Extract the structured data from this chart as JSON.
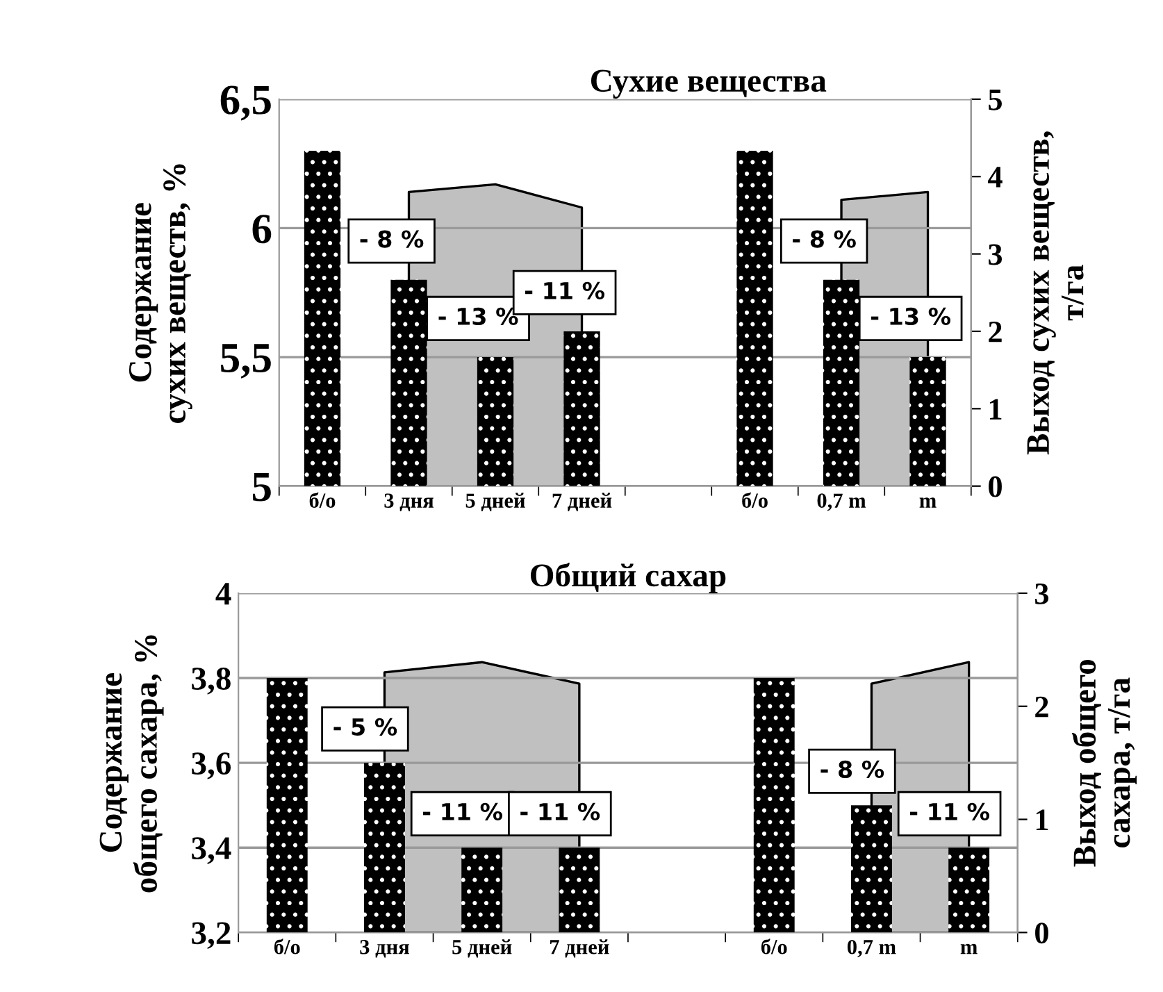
{
  "chart_data": [
    {
      "type": "bar",
      "title": "Сухие вещества",
      "ylabel": "Содержание\nсухих веществ, %",
      "y2label": "Выход сухих веществ,\nт/га",
      "categories": [
        "б/о",
        "3 дня",
        "5 дней",
        "7 дней",
        null,
        "б/о",
        "0,7 m",
        "m"
      ],
      "series": [
        {
          "type": "area",
          "axis": "y2",
          "color": "#c0c0c0",
          "values": [
            null,
            3.8,
            3.9,
            3.6,
            null,
            null,
            3.7,
            3.8
          ]
        },
        {
          "color": "#000000",
          "values": [
            6.3,
            5.8,
            5.5,
            5.6,
            null,
            6.3,
            5.8,
            5.5
          ]
        }
      ],
      "ylim": [
        5,
        6.5
      ],
      "yticks": [
        {
          "value": 5,
          "label": "5"
        },
        {
          "value": 5.5,
          "label": "5,5"
        },
        {
          "value": 6,
          "label": "6"
        },
        {
          "value": 6.5,
          "label": "6,5"
        }
      ],
      "y2lim": [
        0,
        5
      ],
      "y2ticks": [
        0,
        1,
        2,
        3,
        4,
        5
      ],
      "grid": "y",
      "annotations": [
        "- 8 %",
        "- 13 %",
        "- 11 %",
        "- 8 %",
        "- 13 %"
      ]
    },
    {
      "type": "bar",
      "title": "Общий сахар",
      "ylabel": "Содержание\nобщего сахара, %",
      "y2label": "Выход общего\nсахара, т/га",
      "categories": [
        "б/о",
        "3 дня",
        "5 дней",
        "7 дней",
        null,
        "б/о",
        "0,7 m",
        "m"
      ],
      "series": [
        {
          "type": "area",
          "axis": "y2",
          "color": "#c0c0c0",
          "values": [
            null,
            2.3,
            2.39,
            2.2,
            null,
            null,
            2.2,
            2.39
          ]
        },
        {
          "color": "#000000",
          "values": [
            3.8,
            3.6,
            3.4,
            3.4,
            null,
            3.8,
            3.5,
            3.4
          ]
        }
      ],
      "ylim": [
        3.2,
        4
      ],
      "yticks": [
        {
          "value": 3.2,
          "label": "3,2"
        },
        {
          "value": 3.4,
          "label": "3,4"
        },
        {
          "value": 3.6,
          "label": "3,6"
        },
        {
          "value": 3.8,
          "label": "3,8"
        },
        {
          "value": 4,
          "label": "4"
        }
      ],
      "y2lim": [
        0,
        3
      ],
      "y2ticks": [
        0,
        1,
        2,
        3
      ],
      "grid": "y",
      "annotations": [
        "- 5 %",
        "- 11 %",
        "- 11 %",
        "- 8 %",
        "- 11 %"
      ]
    }
  ]
}
